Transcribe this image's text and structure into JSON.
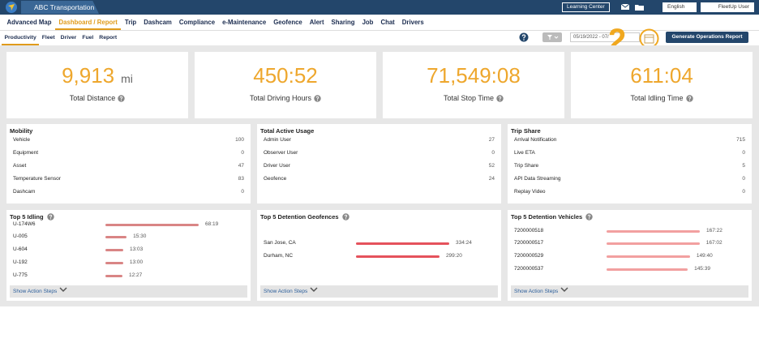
{
  "header": {
    "brand": "ABC Transportation",
    "learning_center": "Learning Center",
    "language": "English",
    "user": "FleetUp User"
  },
  "nav": {
    "items": [
      "Advanced Map",
      "Dashboard / Report",
      "Trip",
      "Dashcam",
      "Compliance",
      "e-Maintenance",
      "Geofence",
      "Alert",
      "Sharing",
      "Job",
      "Chat",
      "Drivers"
    ],
    "active": 1
  },
  "subnav": {
    "items": [
      "Productivity",
      "Fleet",
      "Driver",
      "Fuel",
      "Report"
    ],
    "active": 0,
    "date_range": "05/19/2022 - 07/",
    "generate_button": "Generate Operations Report"
  },
  "annotation": "2",
  "kpis": [
    {
      "value": "9,913",
      "unit": "mi",
      "label": "Total Distance"
    },
    {
      "value": "450:52",
      "label": "Total Driving Hours"
    },
    {
      "value": "71,549:08",
      "label": "Total Stop Time"
    },
    {
      "value": "611:04",
      "label": "Total Idling Time"
    }
  ],
  "tables": [
    {
      "title": "Mobility",
      "rows": [
        [
          "Vehicle",
          100
        ],
        [
          "Equipment",
          0
        ],
        [
          "Asset",
          47
        ],
        [
          "Temperature Sensor",
          83
        ],
        [
          "Dashcam",
          0
        ]
      ]
    },
    {
      "title": "Total Active Usage",
      "rows": [
        [
          "Admin User",
          27
        ],
        [
          "Observer User",
          0
        ],
        [
          "Driver User",
          52
        ],
        [
          "Geofence",
          24
        ]
      ]
    },
    {
      "title": "Trip Share",
      "rows": [
        [
          "Arrival Notification",
          715
        ],
        [
          "Live ETA",
          0
        ],
        [
          "Trip Share",
          5
        ],
        [
          "API Data Streaming",
          0
        ],
        [
          "Replay Video",
          0
        ]
      ]
    }
  ],
  "top_lists": [
    {
      "title": "Top 5 Idling",
      "color": "#d98585",
      "items": [
        [
          "U-174W6",
          "68:19"
        ],
        [
          "U-005",
          "15:30"
        ],
        [
          "U-604",
          "13:03"
        ],
        [
          "U-192",
          "13:00"
        ],
        [
          "U-775",
          "12:27"
        ]
      ],
      "footer": "Show Action Steps"
    },
    {
      "title": "Top 5 Detention Geofences",
      "color": "#e5525c",
      "items": [
        [
          "San Jose, CA",
          "334:24"
        ],
        [
          "Durham, NC",
          "299:20"
        ]
      ],
      "footer": "Show Action Steps"
    },
    {
      "title": "Top 5 Detention Vehicles",
      "color": "#f2a0a0",
      "items": [
        [
          "7200000518",
          "167:22"
        ],
        [
          "7200000517",
          "167:02"
        ],
        [
          "7200000529",
          "149:40"
        ],
        [
          "7200000537",
          "145:39"
        ]
      ],
      "footer": "Show Action Steps"
    }
  ]
}
